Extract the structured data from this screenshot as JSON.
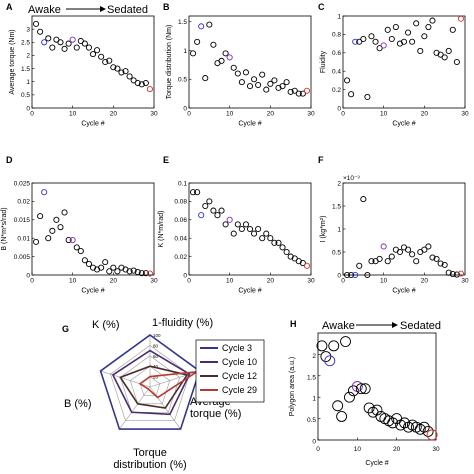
{
  "colors": {
    "black": "#000000",
    "blue": "#2f2fd1",
    "purple": "#7b2fb3",
    "red": "#d0312d",
    "radar_c3": "#34358d",
    "radar_c10": "#4a2b6e",
    "radar_c12": "#4a2d2a",
    "radar_c29": "#b5372f"
  },
  "header_a": {
    "left": "Awake",
    "right": "Sedated"
  },
  "header_h": {
    "left": "Awake",
    "right": "Sedated"
  },
  "panels": [
    {
      "id": "A",
      "type": "scatter",
      "xlabel": "Cycle #",
      "ylabel": "Average torque (Nm)",
      "xlim": [
        0,
        30
      ],
      "ylim": [
        0,
        3.5
      ],
      "xticks": [
        0,
        10,
        20,
        30
      ],
      "xtick_labels": [
        "0",
        "10",
        "20",
        "30"
      ],
      "yticks": [
        0,
        0.5,
        1,
        1.5,
        2,
        2.5,
        3
      ],
      "ytick_labels": [
        "0",
        "0.5",
        "1",
        "1.5",
        "2",
        "2.5",
        "3"
      ],
      "x": [
        1,
        2,
        3,
        4,
        5,
        6,
        7,
        8,
        9,
        10,
        11,
        12,
        13,
        14,
        15,
        16,
        17,
        18,
        19,
        20,
        21,
        22,
        23,
        24,
        25,
        26,
        27,
        28,
        29
      ],
      "y": [
        3.2,
        2.9,
        2.5,
        2.65,
        2.3,
        2.6,
        2.5,
        2.25,
        2.45,
        2.6,
        2.3,
        2.55,
        2.45,
        2.3,
        2.05,
        2.2,
        1.95,
        1.75,
        1.8,
        1.55,
        1.5,
        1.35,
        1.4,
        1.2,
        1.05,
        0.95,
        0.9,
        0.95,
        0.72
      ],
      "highlights": {
        "3": "blue",
        "10": "purple",
        "12": "black",
        "29": "red"
      }
    },
    {
      "id": "B",
      "type": "scatter",
      "xlabel": "Cycle #",
      "ylabel": "Torque distribution (Nm)",
      "xlim": [
        0,
        30
      ],
      "ylim": [
        0,
        1.6
      ],
      "xticks": [
        0,
        10,
        20,
        30
      ],
      "xtick_labels": [
        "0",
        "10",
        "20",
        "30"
      ],
      "yticks": [
        0,
        0.5,
        1,
        1.5
      ],
      "ytick_labels": [
        "0",
        "0.5",
        "1",
        "1.5"
      ],
      "x": [
        1,
        2,
        3,
        4,
        5,
        6,
        7,
        8,
        9,
        10,
        11,
        12,
        13,
        14,
        15,
        16,
        17,
        18,
        19,
        20,
        21,
        22,
        23,
        24,
        25,
        26,
        27,
        28,
        29
      ],
      "y": [
        0.95,
        1.15,
        1.42,
        0.52,
        1.45,
        1.1,
        0.78,
        0.82,
        0.95,
        0.88,
        0.7,
        0.6,
        0.45,
        0.62,
        0.38,
        0.5,
        0.4,
        0.58,
        0.32,
        0.42,
        0.48,
        0.35,
        0.38,
        0.45,
        0.28,
        0.3,
        0.25,
        0.25,
        0.3
      ],
      "highlights": {
        "3": "blue",
        "10": "purple",
        "29": "red"
      }
    },
    {
      "id": "C",
      "type": "scatter",
      "xlabel": "Cycle #",
      "ylabel": "Fluidity",
      "xlim": [
        0,
        30
      ],
      "ylim": [
        0,
        1
      ],
      "xticks": [
        0,
        10,
        20,
        30
      ],
      "xtick_labels": [
        "0",
        "10",
        "20",
        "30"
      ],
      "yticks": [
        0,
        0.2,
        0.4,
        0.6,
        0.8,
        1
      ],
      "ytick_labels": [
        "0",
        "0.2",
        "0.4",
        "0.6",
        "0.8",
        "1"
      ],
      "x": [
        1,
        2,
        3,
        4,
        5,
        6,
        7,
        8,
        9,
        10,
        11,
        12,
        13,
        14,
        15,
        16,
        17,
        18,
        19,
        20,
        21,
        22,
        23,
        24,
        25,
        26,
        27,
        28,
        29
      ],
      "y": [
        0.3,
        0.15,
        0.72,
        0.72,
        0.75,
        0.12,
        0.78,
        0.72,
        0.65,
        0.68,
        0.85,
        0.75,
        0.88,
        0.7,
        0.72,
        0.82,
        0.72,
        0.92,
        0.62,
        0.78,
        0.88,
        0.95,
        0.6,
        0.58,
        0.55,
        0.62,
        0.85,
        0.5,
        0.97
      ],
      "highlights": {
        "3": "blue",
        "10": "purple",
        "29": "red"
      }
    },
    {
      "id": "D",
      "type": "scatter",
      "xlabel": "Cycle #",
      "ylabel": "B (N*m*s/rad)",
      "xlim": [
        0,
        30
      ],
      "ylim": [
        0,
        0.025
      ],
      "xticks": [
        0,
        10,
        20,
        30
      ],
      "xtick_labels": [
        "0",
        "10",
        "20",
        "30"
      ],
      "yticks": [
        0,
        0.005,
        0.01,
        0.015,
        0.02,
        0.025
      ],
      "ytick_labels": [
        "0",
        "0.005",
        "0.01",
        "0.015",
        "0.02",
        "0.025"
      ],
      "x": [
        1,
        2,
        3,
        4,
        5,
        6,
        7,
        8,
        9,
        10,
        11,
        12,
        13,
        14,
        15,
        16,
        17,
        18,
        19,
        20,
        21,
        22,
        23,
        24,
        25,
        26,
        27,
        28,
        29
      ],
      "y": [
        0.009,
        0.016,
        0.0225,
        0.01,
        0.012,
        0.015,
        0.013,
        0.017,
        0.0095,
        0.0095,
        0.0075,
        0.0065,
        0.004,
        0.003,
        0.002,
        0.0015,
        0.002,
        0.0035,
        0.001,
        0.002,
        0.001,
        0.002,
        0.0015,
        0.001,
        0.0012,
        0.0008,
        0.0005,
        0.0005,
        0.0004
      ],
      "highlights": {
        "3": "blue",
        "10": "purple",
        "29": "red"
      }
    },
    {
      "id": "E",
      "type": "scatter",
      "xlabel": "Cycle #",
      "ylabel": "K (N*m/rad)",
      "xlim": [
        0,
        30
      ],
      "ylim": [
        0,
        0.1
      ],
      "xticks": [
        0,
        10,
        20,
        30
      ],
      "xtick_labels": [
        "0",
        "10",
        "20",
        "30"
      ],
      "yticks": [
        0,
        0.02,
        0.04,
        0.06,
        0.08,
        0.1
      ],
      "ytick_labels": [
        "0",
        "0.02",
        "0.04",
        "0.06",
        "0.08",
        "0.1"
      ],
      "x": [
        1,
        2,
        3,
        4,
        5,
        6,
        7,
        8,
        9,
        10,
        11,
        12,
        13,
        14,
        15,
        16,
        17,
        18,
        19,
        20,
        21,
        22,
        23,
        24,
        25,
        26,
        27,
        28,
        29
      ],
      "y": [
        0.09,
        0.09,
        0.065,
        0.075,
        0.08,
        0.07,
        0.065,
        0.07,
        0.055,
        0.06,
        0.045,
        0.055,
        0.05,
        0.055,
        0.05,
        0.045,
        0.05,
        0.04,
        0.045,
        0.04,
        0.035,
        0.035,
        0.03,
        0.025,
        0.02,
        0.018,
        0.015,
        0.013,
        0.01
      ],
      "highlights": {
        "3": "blue",
        "10": "purple",
        "29": "red"
      }
    },
    {
      "id": "F",
      "type": "scatter",
      "xlabel": "Cycle #",
      "ylabel": "I (kg*m²)",
      "multiplier": "×10⁻³",
      "xlim": [
        0,
        30
      ],
      "ylim": [
        0,
        2
      ],
      "xticks": [
        0,
        10,
        20,
        30
      ],
      "xtick_labels": [
        "0",
        "10",
        "20",
        "30"
      ],
      "yticks": [
        0,
        0.5,
        1,
        1.5,
        2
      ],
      "ytick_labels": [
        "0",
        "0.5",
        "1",
        "1.5",
        "2"
      ],
      "x": [
        1,
        2,
        3,
        4,
        5,
        6,
        7,
        8,
        9,
        10,
        11,
        12,
        13,
        14,
        15,
        16,
        17,
        18,
        19,
        20,
        21,
        22,
        23,
        24,
        25,
        26,
        27,
        28,
        29
      ],
      "y": [
        0,
        0,
        0,
        0.2,
        1.65,
        0,
        0.3,
        0.3,
        0.35,
        0.62,
        0.3,
        0.4,
        0.55,
        0.5,
        0.6,
        0.55,
        0.45,
        0.3,
        0.5,
        0.55,
        0.62,
        0.38,
        0.35,
        0.25,
        0.22,
        0.05,
        0.02,
        0.01,
        0.03
      ],
      "highlights": {
        "3": "blue",
        "10": "purple",
        "29": "red"
      }
    },
    {
      "id": "H",
      "type": "scatter",
      "xlabel": "Cycle #",
      "ylabel": "Polygon area (a.u.)",
      "xlim": [
        0,
        30
      ],
      "ylim": [
        0,
        2.5
      ],
      "xticks": [
        0,
        10,
        20,
        30
      ],
      "xtick_labels": [
        "0",
        "10",
        "20",
        "30"
      ],
      "yticks": [
        0,
        0.5,
        1,
        1.5,
        2
      ],
      "ytick_labels": [
        "0",
        "0.5",
        "1",
        "1.5",
        "2"
      ],
      "x": [
        1,
        2,
        3,
        4,
        5,
        6,
        7,
        8,
        9,
        10,
        11,
        12,
        13,
        14,
        15,
        16,
        17,
        18,
        19,
        20,
        21,
        22,
        23,
        24,
        25,
        26,
        27,
        28,
        29
      ],
      "y": [
        2.2,
        1.95,
        1.85,
        2.2,
        0.8,
        0.55,
        2.3,
        1.0,
        1.15,
        1.25,
        1.2,
        1.2,
        0.75,
        0.65,
        0.7,
        0.55,
        0.5,
        0.45,
        0.4,
        0.5,
        0.35,
        0.4,
        0.3,
        0.35,
        0.3,
        0.25,
        0.3,
        0.2,
        0.12
      ],
      "highlights": {
        "3": "blue",
        "10": "purple",
        "29": "red"
      }
    }
  ],
  "radar": {
    "id": "G",
    "axes": [
      "1-fluidity (%)",
      "Average torque (%)",
      "Torque distribution (%)",
      "B (%)",
      "K (%)"
    ],
    "rings": [
      20,
      40,
      60,
      80,
      100
    ],
    "ring_labels": [
      "20",
      "40",
      "60",
      "80",
      "100"
    ],
    "series": [
      {
        "name": "Cycle 3",
        "color": "radar_c3",
        "values": [
          100,
          100,
          100,
          100,
          100
        ]
      },
      {
        "name": "Cycle 10",
        "color": "radar_c10",
        "values": [
          70,
          80,
          65,
          60,
          75
        ]
      },
      {
        "name": "Cycle 12",
        "color": "radar_c12",
        "values": [
          40,
          75,
          50,
          40,
          60
        ]
      },
      {
        "name": "Cycle 29",
        "color": "radar_c29",
        "values": [
          20,
          95,
          25,
          5,
          20
        ]
      }
    ]
  },
  "chart_data": [
    {
      "type": "scatter",
      "title": "",
      "xlabel": "Cycle #",
      "ylabel": "Average torque (Nm)",
      "xlim": [
        0,
        30
      ],
      "ylim": [
        0,
        3.5
      ]
    },
    {
      "type": "scatter",
      "title": "",
      "xlabel": "Cycle #",
      "ylabel": "Torque distribution (Nm)",
      "xlim": [
        0,
        30
      ],
      "ylim": [
        0,
        1.6
      ]
    },
    {
      "type": "scatter",
      "title": "",
      "xlabel": "Cycle #",
      "ylabel": "Fluidity",
      "xlim": [
        0,
        30
      ],
      "ylim": [
        0,
        1
      ]
    },
    {
      "type": "scatter",
      "title": "",
      "xlabel": "Cycle #",
      "ylabel": "B (N*m*s/rad)",
      "xlim": [
        0,
        30
      ],
      "ylim": [
        0,
        0.025
      ]
    },
    {
      "type": "scatter",
      "title": "",
      "xlabel": "Cycle #",
      "ylabel": "K (N*m/rad)",
      "xlim": [
        0,
        30
      ],
      "ylim": [
        0,
        0.1
      ]
    },
    {
      "type": "scatter",
      "title": "",
      "xlabel": "Cycle #",
      "ylabel": "I (kg*m²)",
      "xlim": [
        0,
        30
      ],
      "ylim": [
        0,
        2
      ]
    },
    {
      "type": "radar",
      "title": "",
      "axes": [
        "1-fluidity (%)",
        "Average torque (%)",
        "Torque distribution (%)",
        "B (%)",
        "K (%)"
      ],
      "series": [
        "Cycle 3",
        "Cycle 10",
        "Cycle 12",
        "Cycle 29"
      ]
    },
    {
      "type": "scatter",
      "title": "",
      "xlabel": "Cycle #",
      "ylabel": "Polygon area (a.u.)",
      "xlim": [
        0,
        30
      ],
      "ylim": [
        0,
        2.5
      ]
    }
  ]
}
